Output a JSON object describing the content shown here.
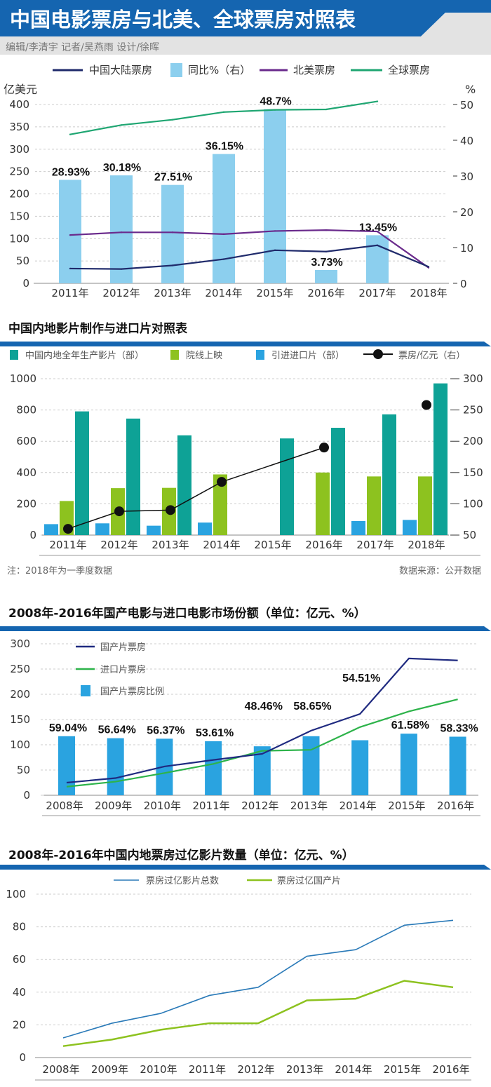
{
  "header": {
    "title": "中国电影票房与北美、全球票房对照表",
    "credits": "编辑/李清宇 记者/吴燕雨 设计/徐晖",
    "colors": {
      "band": "#1565b0",
      "subband": "#e3e3e3"
    }
  },
  "notes": {
    "left": "注：2018年为一季度数据",
    "right": "数据来源：公开数据"
  },
  "chart_data": [
    {
      "type": "bar+line",
      "title": "",
      "ylabel": "亿美元",
      "y2label": "%",
      "ylim": [
        0,
        400
      ],
      "y2lim": [
        0,
        50
      ],
      "yticks": [
        "0",
        "50",
        "100",
        "150",
        "200",
        "250",
        "300",
        "350",
        "400"
      ],
      "y2ticks": [
        "0",
        "10",
        "20",
        "30",
        "40",
        "50"
      ],
      "categories": [
        "2011年",
        "2012年",
        "2013年",
        "2014年",
        "2015年",
        "2016年",
        "2017年",
        "2018年"
      ],
      "legend": [
        "中国大陆票房",
        "同比%（右）",
        "北美票房",
        "全球票房"
      ],
      "series": [
        {
          "name": "中国大陆票房",
          "kind": "line",
          "axis": "left",
          "color": "#1f2a6b",
          "values": [
            33,
            32,
            40,
            54,
            74,
            71,
            85,
            37
          ]
        },
        {
          "name": "同比%（右）",
          "kind": "bar",
          "axis": "right",
          "color": "#8ccfee",
          "values": [
            28.93,
            30.18,
            27.51,
            36.15,
            48.7,
            3.73,
            13.45,
            null
          ],
          "labels": [
            "28.93%",
            "30.18%",
            "27.51%",
            "36.15%",
            "48.7%",
            "3.73%",
            "13.45%",
            ""
          ]
        },
        {
          "name": "北美票房",
          "kind": "line",
          "axis": "left",
          "color": "#6a2a8c",
          "values": [
            108,
            114,
            114,
            110,
            117,
            119,
            116,
            35
          ]
        },
        {
          "name": "全球票房",
          "kind": "line",
          "axis": "left",
          "color": "#1fa672",
          "values": [
            333,
            354,
            366,
            383,
            388,
            389,
            407,
            null
          ]
        }
      ],
      "grid": true,
      "legend_position": "top"
    },
    {
      "type": "bar+line",
      "title": "中国内地影片制作与进口片对照表",
      "ylim": [
        0,
        1000
      ],
      "y2lim": [
        50,
        300
      ],
      "yticks": [
        "0",
        "200",
        "400",
        "600",
        "800",
        "1000"
      ],
      "y2ticks": [
        "50",
        "100",
        "150",
        "200",
        "250",
        "300"
      ],
      "categories": [
        "2011年",
        "2012年",
        "2013年",
        "2014年",
        "2015年",
        "2016年",
        "2017年",
        "2018年"
      ],
      "legend": [
        "中国内地全年生产影片（部）",
        "院线上映",
        "引进进口片（部）",
        "票房/亿元（右）"
      ],
      "series": [
        {
          "name": "引进进口片（部）",
          "kind": "bar",
          "axis": "left",
          "color": "#2aa3e0",
          "values": [
            70,
            75,
            60,
            80,
            null,
            null,
            90,
            97
          ]
        },
        {
          "name": "院线上映",
          "kind": "bar",
          "axis": "left",
          "color": "#8dc21f",
          "values": [
            218,
            300,
            302,
            388,
            null,
            400,
            375,
            375
          ]
        },
        {
          "name": "中国内地全年生产影片（部）",
          "kind": "bar",
          "axis": "left",
          "color": "#0ea296",
          "values": [
            791,
            745,
            638,
            null,
            618,
            686,
            772,
            970
          ]
        },
        {
          "name": "票房/亿元（右）",
          "kind": "line-marker",
          "axis": "right",
          "color": "#111111",
          "values": [
            60,
            88,
            90,
            135,
            null,
            190,
            null,
            258
          ]
        }
      ],
      "grid": true,
      "legend_position": "top"
    },
    {
      "type": "bar+line",
      "title": "2008年-2016年国产电影与进口电影市场份额（单位：亿元、%）",
      "ylim": [
        0,
        300
      ],
      "yticks": [
        "0",
        "50",
        "100",
        "150",
        "200",
        "250",
        "300"
      ],
      "categories": [
        "2008年",
        "2009年",
        "2010年",
        "2011年",
        "2012年",
        "2013年",
        "2014年",
        "2015年",
        "2016年"
      ],
      "legend": [
        "国产片票房",
        "进口片票房",
        "国产片票房比例"
      ],
      "series": [
        {
          "name": "国产片票房",
          "kind": "line",
          "color": "#1f2a80",
          "values": [
            25,
            34,
            57,
            70,
            82,
            128,
            161,
            271,
            267
          ]
        },
        {
          "name": "进口片票房",
          "kind": "line",
          "color": "#2db34a",
          "values": [
            17,
            27,
            44,
            62,
            88,
            90,
            135,
            166,
            190
          ]
        },
        {
          "name": "国产片票房比例",
          "kind": "bar",
          "color": "#2aa3e0",
          "values": [
            117,
            113,
            112,
            107,
            97,
            117,
            109,
            122,
            116
          ],
          "labels": [
            "59.04%",
            "56.64%",
            "56.37%",
            "53.61%",
            "48.46%",
            "58.65%",
            "54.51%",
            "61.58%",
            "58.33%"
          ]
        }
      ],
      "grid": true,
      "legend_position": "top-left"
    },
    {
      "type": "line",
      "title": "2008年-2016年中国内地票房过亿影片数量（单位：亿元、%）",
      "ylim": [
        0,
        100
      ],
      "yticks": [
        "0",
        "20",
        "40",
        "60",
        "80",
        "100"
      ],
      "categories": [
        "2008年",
        "2009年",
        "2010年",
        "2011年",
        "2012年",
        "2013年",
        "2014年",
        "2015年",
        "2016年"
      ],
      "legend": [
        "票房过亿影片总数",
        "票房过亿国产片"
      ],
      "series": [
        {
          "name": "票房过亿影片总数",
          "color": "#2a7ab8",
          "values": [
            12,
            21,
            27,
            38,
            43,
            62,
            66,
            81,
            84
          ]
        },
        {
          "name": "票房过亿国产片",
          "color": "#8dc21f",
          "values": [
            7,
            11,
            17,
            21,
            21,
            35,
            36,
            47,
            43
          ]
        }
      ],
      "grid": true,
      "legend_position": "top"
    }
  ]
}
